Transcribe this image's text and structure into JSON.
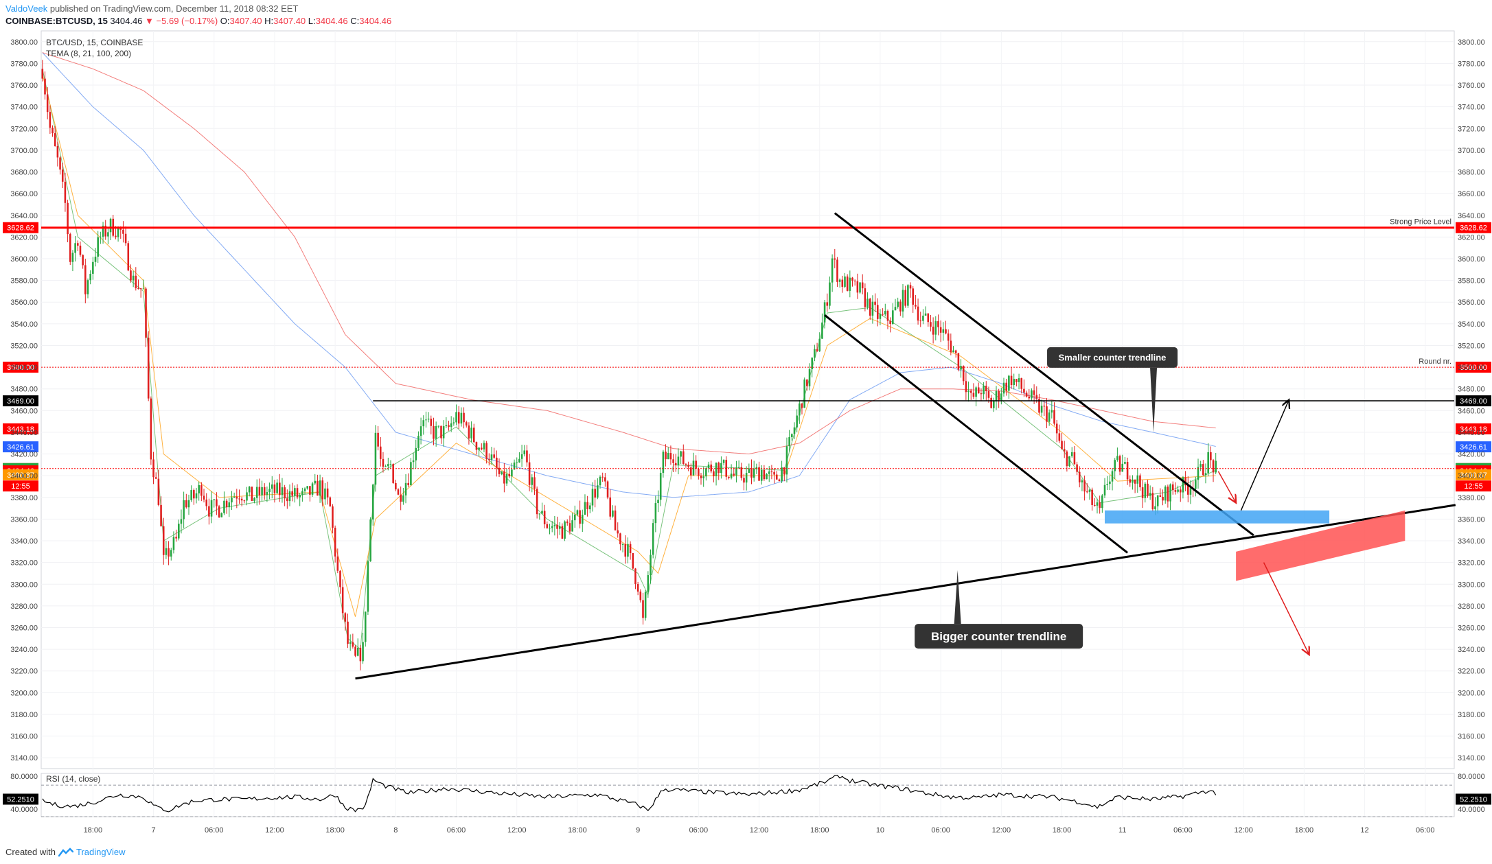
{
  "header": {
    "author": "ValdoVeek",
    "published": "published on TradingView.com, December 11, 2018 08:32 EET",
    "symbol": "COINBASE:BTCUSD, 15",
    "last": "3404.46",
    "change": "−5.69 (−0.17%)",
    "o_label": "O:",
    "o": "3407.40",
    "h_label": "H:",
    "h": "3407.40",
    "l_label": "L:",
    "l": "3404.46",
    "c_label": "C:",
    "c": "3404.46"
  },
  "legend": {
    "title": "BTC/USD, 15, COINBASE",
    "indicator": "TEMA (8, 21, 100, 200)",
    "rsi": "RSI (14, close)"
  },
  "footer": {
    "created_with": "Created with",
    "brand": "TradingView"
  },
  "colors": {
    "up": "#26a641",
    "down": "#e01e1e",
    "resistance": "#ff0000",
    "tema8": "#4caf50",
    "tema21": "#ff9800",
    "tema100": "#5b8ff0",
    "tema200": "#ef5350",
    "blue_zone": "#42a5f5",
    "red_zone": "#ff5252"
  },
  "chart_data": {
    "type": "candlestick",
    "ylim": [
      3130,
      3810
    ],
    "y_ticks": [
      3140,
      3160,
      3180,
      3200,
      3220,
      3240,
      3260,
      3280,
      3300,
      3320,
      3340,
      3360,
      3380,
      3400,
      3420,
      3440,
      3460,
      3480,
      3500,
      3520,
      3540,
      3560,
      3580,
      3600,
      3620,
      3640,
      3660,
      3680,
      3700,
      3720,
      3740,
      3760,
      3780,
      3800
    ],
    "x_ticks": [
      {
        "label": "18:00",
        "bar": 20
      },
      {
        "label": "7",
        "bar": 44
      },
      {
        "label": "06:00",
        "bar": 68
      },
      {
        "label": "12:00",
        "bar": 92
      },
      {
        "label": "18:00",
        "bar": 116
      },
      {
        "label": "8",
        "bar": 140
      },
      {
        "label": "06:00",
        "bar": 164
      },
      {
        "label": "12:00",
        "bar": 188
      },
      {
        "label": "18:00",
        "bar": 212
      },
      {
        "label": "9",
        "bar": 236
      },
      {
        "label": "06:00",
        "bar": 260
      },
      {
        "label": "12:00",
        "bar": 284
      },
      {
        "label": "18:00",
        "bar": 308
      },
      {
        "label": "10",
        "bar": 332
      },
      {
        "label": "06:00",
        "bar": 356
      },
      {
        "label": "12:00",
        "bar": 380
      },
      {
        "label": "18:00",
        "bar": 404
      },
      {
        "label": "11",
        "bar": 428
      },
      {
        "label": "06:00",
        "bar": 452
      },
      {
        "label": "12:00",
        "bar": 476
      },
      {
        "label": "18:00",
        "bar": 500
      },
      {
        "label": "12",
        "bar": 524
      },
      {
        "label": "06:00",
        "bar": 548
      }
    ],
    "total_bars": 560,
    "price_anchors": [
      [
        0,
        3775
      ],
      [
        3,
        3720
      ],
      [
        6,
        3690
      ],
      [
        9,
        3650
      ],
      [
        11,
        3600
      ],
      [
        14,
        3620
      ],
      [
        17,
        3570
      ],
      [
        20,
        3600
      ],
      [
        23,
        3620
      ],
      [
        27,
        3630
      ],
      [
        31,
        3625
      ],
      [
        36,
        3580
      ],
      [
        40,
        3570
      ],
      [
        43,
        3420
      ],
      [
        46,
        3380
      ],
      [
        48,
        3320
      ],
      [
        50,
        3330
      ],
      [
        53,
        3340
      ],
      [
        56,
        3375
      ],
      [
        60,
        3380
      ],
      [
        63,
        3390
      ],
      [
        66,
        3370
      ],
      [
        70,
        3370
      ],
      [
        74,
        3380
      ],
      [
        78,
        3385
      ],
      [
        83,
        3380
      ],
      [
        88,
        3385
      ],
      [
        95,
        3385
      ],
      [
        103,
        3380
      ],
      [
        110,
        3390
      ],
      [
        114,
        3370
      ],
      [
        118,
        3290
      ],
      [
        121,
        3245
      ],
      [
        124,
        3230
      ],
      [
        127,
        3240
      ],
      [
        129,
        3320
      ],
      [
        132,
        3440
      ],
      [
        135,
        3400
      ],
      [
        138,
        3410
      ],
      [
        141,
        3380
      ],
      [
        145,
        3400
      ],
      [
        150,
        3450
      ],
      [
        155,
        3440
      ],
      [
        160,
        3440
      ],
      [
        164,
        3455
      ],
      [
        168,
        3445
      ],
      [
        172,
        3430
      ],
      [
        177,
        3420
      ],
      [
        182,
        3395
      ],
      [
        186,
        3400
      ],
      [
        191,
        3420
      ],
      [
        196,
        3370
      ],
      [
        200,
        3355
      ],
      [
        206,
        3350
      ],
      [
        212,
        3360
      ],
      [
        217,
        3380
      ],
      [
        222,
        3395
      ],
      [
        227,
        3350
      ],
      [
        232,
        3330
      ],
      [
        236,
        3300
      ],
      [
        238,
        3265
      ],
      [
        242,
        3350
      ],
      [
        246,
        3415
      ],
      [
        250,
        3420
      ],
      [
        256,
        3410
      ],
      [
        262,
        3405
      ],
      [
        268,
        3410
      ],
      [
        274,
        3400
      ],
      [
        280,
        3400
      ],
      [
        285,
        3405
      ],
      [
        290,
        3395
      ],
      [
        294,
        3410
      ],
      [
        298,
        3445
      ],
      [
        302,
        3480
      ],
      [
        306,
        3510
      ],
      [
        309,
        3540
      ],
      [
        311,
        3565
      ],
      [
        313,
        3600
      ],
      [
        316,
        3580
      ],
      [
        320,
        3575
      ],
      [
        324,
        3570
      ],
      [
        328,
        3555
      ],
      [
        332,
        3545
      ],
      [
        336,
        3545
      ],
      [
        340,
        3560
      ],
      [
        344,
        3570
      ],
      [
        348,
        3545
      ],
      [
        352,
        3540
      ],
      [
        356,
        3535
      ],
      [
        360,
        3520
      ],
      [
        364,
        3500
      ],
      [
        368,
        3470
      ],
      [
        372,
        3480
      ],
      [
        376,
        3465
      ],
      [
        380,
        3480
      ],
      [
        384,
        3490
      ],
      [
        388,
        3480
      ],
      [
        392,
        3470
      ],
      [
        396,
        3460
      ],
      [
        400,
        3455
      ],
      [
        404,
        3420
      ],
      [
        408,
        3415
      ],
      [
        412,
        3390
      ],
      [
        416,
        3375
      ],
      [
        419,
        3365
      ],
      [
        422,
        3395
      ],
      [
        426,
        3410
      ],
      [
        430,
        3405
      ],
      [
        434,
        3395
      ],
      [
        438,
        3380
      ],
      [
        442,
        3375
      ],
      [
        446,
        3385
      ],
      [
        450,
        3390
      ],
      [
        454,
        3390
      ],
      [
        458,
        3400
      ],
      [
        462,
        3415
      ],
      [
        465,
        3405
      ]
    ],
    "ema_anchors": {
      "tema8": [
        [
          0,
          3775
        ],
        [
          14,
          3620
        ],
        [
          40,
          3570
        ],
        [
          48,
          3340
        ],
        [
          70,
          3370
        ],
        [
          110,
          3385
        ],
        [
          121,
          3250
        ],
        [
          126,
          3240
        ],
        [
          132,
          3400
        ],
        [
          164,
          3445
        ],
        [
          200,
          3360
        ],
        [
          236,
          3310
        ],
        [
          240,
          3290
        ],
        [
          250,
          3410
        ],
        [
          294,
          3405
        ],
        [
          311,
          3550
        ],
        [
          328,
          3555
        ],
        [
          364,
          3500
        ],
        [
          404,
          3425
        ],
        [
          419,
          3375
        ],
        [
          446,
          3385
        ],
        [
          465,
          3405
        ]
      ],
      "tema21": [
        [
          0,
          3770
        ],
        [
          14,
          3640
        ],
        [
          40,
          3580
        ],
        [
          48,
          3420
        ],
        [
          70,
          3380
        ],
        [
          110,
          3385
        ],
        [
          124,
          3270
        ],
        [
          132,
          3360
        ],
        [
          164,
          3430
        ],
        [
          200,
          3380
        ],
        [
          236,
          3330
        ],
        [
          244,
          3310
        ],
        [
          256,
          3400
        ],
        [
          294,
          3400
        ],
        [
          311,
          3520
        ],
        [
          328,
          3545
        ],
        [
          364,
          3510
        ],
        [
          404,
          3440
        ],
        [
          426,
          3395
        ],
        [
          465,
          3400
        ]
      ],
      "tema100": [
        [
          0,
          3790
        ],
        [
          20,
          3740
        ],
        [
          40,
          3700
        ],
        [
          60,
          3640
        ],
        [
          80,
          3590
        ],
        [
          100,
          3540
        ],
        [
          120,
          3500
        ],
        [
          140,
          3440
        ],
        [
          170,
          3420
        ],
        [
          200,
          3400
        ],
        [
          230,
          3385
        ],
        [
          250,
          3380
        ],
        [
          280,
          3385
        ],
        [
          300,
          3400
        ],
        [
          320,
          3470
        ],
        [
          340,
          3495
        ],
        [
          360,
          3500
        ],
        [
          380,
          3485
        ],
        [
          400,
          3465
        ],
        [
          420,
          3450
        ],
        [
          440,
          3440
        ],
        [
          465,
          3427
        ]
      ],
      "tema200": [
        [
          0,
          3790
        ],
        [
          20,
          3775
        ],
        [
          40,
          3755
        ],
        [
          60,
          3720
        ],
        [
          80,
          3680
        ],
        [
          100,
          3620
        ],
        [
          120,
          3530
        ],
        [
          140,
          3485
        ],
        [
          170,
          3470
        ],
        [
          200,
          3460
        ],
        [
          230,
          3440
        ],
        [
          250,
          3425
        ],
        [
          280,
          3420
        ],
        [
          300,
          3430
        ],
        [
          320,
          3460
        ],
        [
          340,
          3480
        ],
        [
          360,
          3480
        ],
        [
          380,
          3478
        ],
        [
          400,
          3470
        ],
        [
          420,
          3460
        ],
        [
          440,
          3450
        ],
        [
          465,
          3444
        ]
      ]
    },
    "rsi_ylim": [
      30,
      85
    ],
    "rsi_anchors": [
      [
        0,
        50
      ],
      [
        5,
        45
      ],
      [
        12,
        43
      ],
      [
        20,
        48
      ],
      [
        30,
        58
      ],
      [
        40,
        55
      ],
      [
        45,
        42
      ],
      [
        50,
        38
      ],
      [
        55,
        45
      ],
      [
        60,
        50
      ],
      [
        70,
        52
      ],
      [
        80,
        52
      ],
      [
        90,
        54
      ],
      [
        100,
        55
      ],
      [
        110,
        52
      ],
      [
        116,
        58
      ],
      [
        120,
        42
      ],
      [
        124,
        38
      ],
      [
        128,
        43
      ],
      [
        131,
        77
      ],
      [
        135,
        70
      ],
      [
        145,
        60
      ],
      [
        160,
        66
      ],
      [
        180,
        60
      ],
      [
        200,
        55
      ],
      [
        220,
        58
      ],
      [
        236,
        45
      ],
      [
        240,
        38
      ],
      [
        246,
        65
      ],
      [
        260,
        62
      ],
      [
        280,
        58
      ],
      [
        300,
        64
      ],
      [
        310,
        74
      ],
      [
        316,
        82
      ],
      [
        320,
        76
      ],
      [
        330,
        70
      ],
      [
        340,
        66
      ],
      [
        350,
        60
      ],
      [
        360,
        55
      ],
      [
        370,
        54
      ],
      [
        380,
        58
      ],
      [
        400,
        55
      ],
      [
        412,
        48
      ],
      [
        418,
        42
      ],
      [
        426,
        55
      ],
      [
        440,
        52
      ],
      [
        452,
        56
      ],
      [
        462,
        63
      ],
      [
        465,
        60
      ]
    ],
    "rsi_levels": [
      70,
      30
    ],
    "levels": [
      {
        "name": "Strong Price Level",
        "price": 3628.62,
        "label": "3628.62"
      },
      {
        "name": "Round nr.",
        "price": 3500.0,
        "label": "3500.00"
      },
      {
        "name": "",
        "price": 3469.0,
        "label": "3469.00"
      },
      {
        "name": "",
        "price": 3406.55,
        "label": "3406.55"
      }
    ],
    "price_labels": [
      {
        "price": 3443.18,
        "label": "3443.18",
        "color": "#ff0000"
      },
      {
        "price": 3426.61,
        "label": "3426.61",
        "color": "#2962ff"
      },
      {
        "price": 3406.55,
        "label": "3406.55",
        "color": "#26a641"
      },
      {
        "price": 3404.46,
        "label": "3404.46",
        "color": "#ff0000"
      },
      {
        "price": 3390.5,
        "label": "12:55",
        "color": "#ff0000"
      },
      {
        "price": 3400.87,
        "label": "3400.87",
        "color": "#ff9800"
      }
    ],
    "rsi_value": "52.2510",
    "rsi_tick_labels": [
      "80.0000",
      "40.0000"
    ],
    "annotations": [
      {
        "text": "Smaller counter trendline"
      },
      {
        "text": "Bigger counter trendline"
      }
    ],
    "trendlines": [
      {
        "name": "bigger-counter-trendline",
        "from": [
          124,
          3213
        ],
        "to": [
          560,
          3373
        ]
      },
      {
        "name": "channel-upper",
        "from": [
          314,
          3642
        ],
        "to": [
          480,
          3345
        ]
      },
      {
        "name": "channel-lower",
        "from": [
          310,
          3548
        ],
        "to": [
          430,
          3329
        ]
      },
      {
        "name": "horizontal-3469",
        "from": [
          131,
          3469
        ],
        "to": [
          560,
          3469
        ]
      }
    ]
  }
}
